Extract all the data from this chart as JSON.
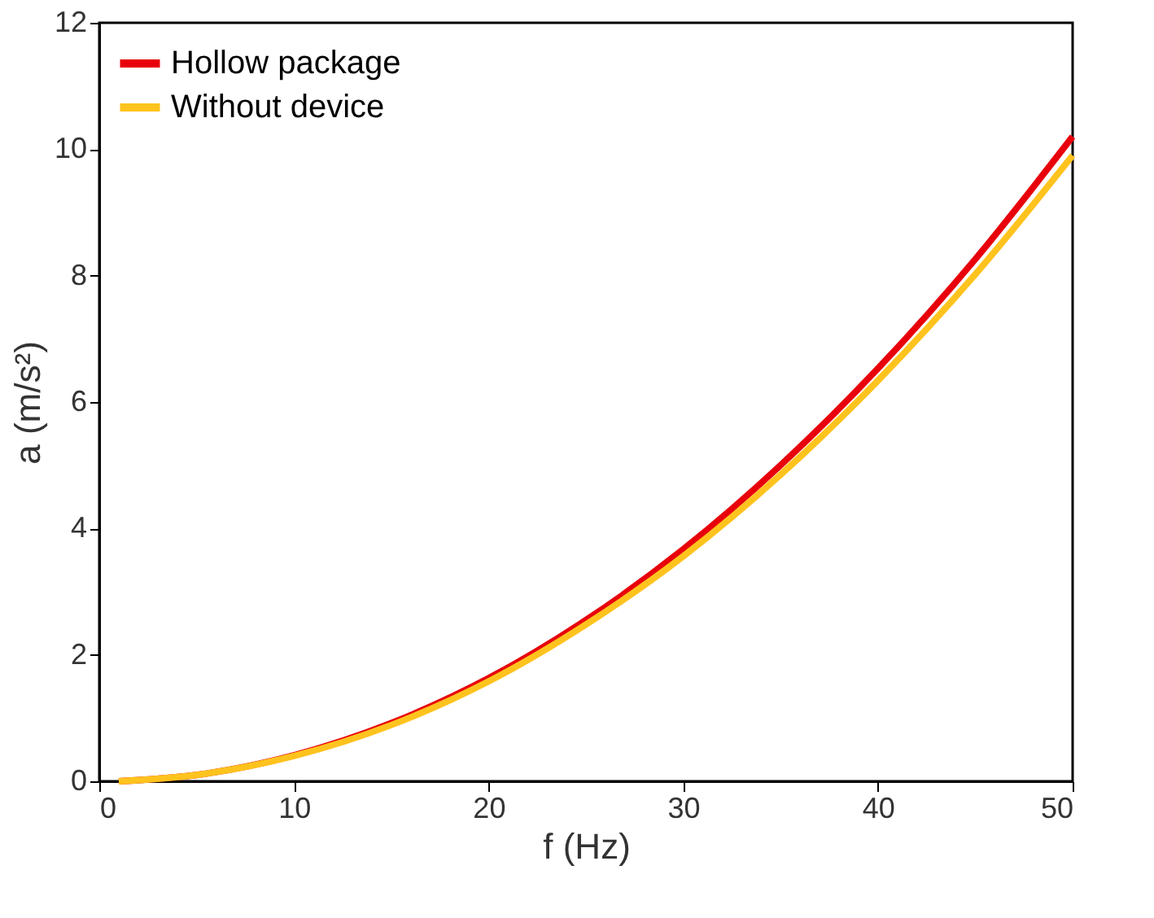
{
  "chart_data": {
    "type": "line",
    "xlabel": "f (Hz)",
    "ylabel": "a (m/s²)",
    "x": [
      1,
      5,
      10,
      15,
      20,
      25,
      30,
      35,
      40,
      45,
      50
    ],
    "series": [
      {
        "name": "Hollow package",
        "color": "#e8000b",
        "values": [
          0,
          0.1,
          0.41,
          0.92,
          1.63,
          2.55,
          3.67,
          5.0,
          6.53,
          8.26,
          10.2
        ]
      },
      {
        "name": "Without device",
        "color": "#ffc31e",
        "values": [
          0,
          0.1,
          0.4,
          0.89,
          1.58,
          2.48,
          3.56,
          4.85,
          6.34,
          8.02,
          9.9
        ]
      }
    ],
    "xlim": [
      0,
      50
    ],
    "xticks": [
      0,
      10,
      20,
      30,
      40,
      50
    ],
    "ylim": [
      0,
      12
    ],
    "yticks": [
      0,
      2,
      4,
      6,
      8,
      10,
      12
    ],
    "grid": false,
    "legend": "top left",
    "marker": "none",
    "line_style": "solid"
  }
}
